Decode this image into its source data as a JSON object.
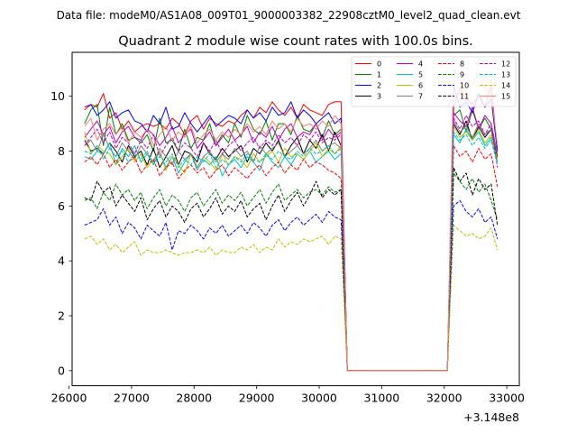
{
  "chart_data": {
    "type": "line",
    "suptitle": "Data file: modeM0/AS1A08_009T01_9000003382_22908cztM0_level2_quad_clean.evt",
    "title": "Quadrant 2 module wise count rates with 100.0s bins.",
    "xlabel": "",
    "ylabel": "",
    "x_offset_label": "+3.148e8",
    "xlim": [
      26050,
      33200
    ],
    "ylim": [
      -0.55,
      11.6
    ],
    "x_ticks": [
      26000,
      27000,
      28000,
      29000,
      30000,
      31000,
      32000,
      33000
    ],
    "x_tick_labels": [
      "26000",
      "27000",
      "28000",
      "29000",
      "30000",
      "31000",
      "32000",
      "33000"
    ],
    "y_ticks": [
      0,
      2,
      4,
      6,
      8,
      10
    ],
    "y_tick_labels": [
      "0",
      "2",
      "4",
      "6",
      "8",
      "10"
    ],
    "x": [
      26250,
      26350,
      26450,
      26550,
      26650,
      26750,
      26850,
      26950,
      27050,
      27150,
      27250,
      27350,
      27450,
      27550,
      27650,
      27750,
      27850,
      27950,
      28050,
      28150,
      28250,
      28350,
      28450,
      28550,
      28650,
      28750,
      28850,
      28950,
      29050,
      29150,
      29250,
      29350,
      29450,
      29550,
      29650,
      29750,
      29850,
      29950,
      30050,
      30150,
      30250,
      30350,
      30450,
      30550,
      30650,
      30750,
      30850,
      30950,
      31050,
      31150,
      31250,
      31350,
      31450,
      31550,
      31650,
      31750,
      31850,
      31950,
      32050,
      32150,
      32250,
      32350,
      32450,
      32550,
      32650,
      32750,
      32850
    ],
    "legend": {
      "position": "upper right",
      "columns": 4
    },
    "series": [
      {
        "name": "0",
        "color": "#ff0000",
        "dash": "solid",
        "values": [
          9.5,
          9.7,
          9.6,
          10.1,
          9.2,
          9.4,
          8.8,
          9.1,
          8.7,
          8.9,
          9.0,
          8.9,
          9.0,
          8.8,
          9.2,
          9.0,
          8.6,
          9.1,
          9.3,
          8.8,
          9.2,
          9.0,
          8.9,
          9.1,
          9.0,
          9.3,
          9.5,
          9.2,
          9.6,
          9.4,
          9.8,
          9.5,
          9.3,
          9.6,
          9.2,
          9.7,
          9.5,
          9.4,
          9.3,
          9.7,
          9.8,
          9.8,
          0.0,
          0,
          0,
          0,
          0,
          0,
          0,
          0,
          0,
          0,
          0,
          0,
          0,
          0,
          0,
          0,
          0.0,
          9.6,
          10.3,
          9.9,
          9.7,
          10.0,
          9.6,
          10.4,
          8.0
        ]
      },
      {
        "name": "1",
        "color": "#008000",
        "dash": "solid",
        "values": [
          9.0,
          9.5,
          9.7,
          8.2,
          9.6,
          8.6,
          9.0,
          8.4,
          8.5,
          8.3,
          8.6,
          8.0,
          9.2,
          8.3,
          8.4,
          8.0,
          8.8,
          8.1,
          8.5,
          8.4,
          9.0,
          8.2,
          8.6,
          8.3,
          9.0,
          8.5,
          9.3,
          8.8,
          8.6,
          9.1,
          8.4,
          9.0,
          9.0,
          8.6,
          9.3,
          8.8,
          8.7,
          9.0,
          8.5,
          9.1,
          8.6,
          8.8,
          0.0,
          0,
          0,
          0,
          0,
          0,
          0,
          0,
          0,
          0,
          0,
          0,
          0,
          0,
          0,
          0,
          0.0,
          9.3,
          9.5,
          8.7,
          9.5,
          8.8,
          9.2,
          8.8,
          7.7
        ]
      },
      {
        "name": "2",
        "color": "#0000ff",
        "dash": "solid",
        "values": [
          9.6,
          9.7,
          9.3,
          9.5,
          9.8,
          9.2,
          9.4,
          9.5,
          9.1,
          9.0,
          8.7,
          9.3,
          9.0,
          9.6,
          8.8,
          8.9,
          9.4,
          9.0,
          8.7,
          9.0,
          9.3,
          8.9,
          9.1,
          9.3,
          9.2,
          9.0,
          9.5,
          9.2,
          9.4,
          9.1,
          9.6,
          9.3,
          9.4,
          9.8,
          9.2,
          9.5,
          9.3,
          9.0,
          9.2,
          9.4,
          9.0,
          9.2,
          0.0,
          0,
          0,
          0,
          0,
          0,
          0,
          0,
          0,
          0,
          0,
          0,
          0,
          0,
          0,
          0,
          0.0,
          10.4,
          9.6,
          9.8,
          9.4,
          10.1,
          9.6,
          9.9,
          8.0
        ]
      },
      {
        "name": "3",
        "color": "#000000",
        "dash": "solid",
        "values": [
          8.4,
          8.0,
          8.1,
          7.9,
          8.3,
          8.0,
          7.6,
          8.2,
          7.8,
          8.0,
          7.5,
          8.1,
          7.4,
          7.8,
          8.2,
          7.5,
          8.0,
          7.9,
          7.6,
          8.3,
          7.9,
          7.7,
          8.1,
          7.8,
          8.0,
          8.2,
          7.6,
          8.1,
          7.9,
          8.3,
          8.0,
          8.4,
          7.8,
          8.2,
          8.5,
          7.9,
          8.4,
          8.1,
          8.6,
          8.0,
          8.7,
          8.2,
          0.0,
          0,
          0,
          0,
          0,
          0,
          0,
          0,
          0,
          0,
          0,
          0,
          0,
          0,
          0,
          0,
          0.0,
          9.0,
          8.6,
          9.1,
          8.4,
          8.9,
          8.5,
          8.8,
          7.8
        ]
      },
      {
        "name": "4",
        "color": "#bf00bf",
        "dash": "solid",
        "values": [
          8.5,
          8.8,
          9.1,
          8.6,
          8.9,
          8.3,
          8.7,
          8.9,
          8.5,
          8.4,
          8.8,
          8.6,
          8.2,
          8.5,
          8.9,
          8.3,
          8.6,
          8.8,
          8.1,
          8.4,
          8.7,
          8.2,
          8.5,
          8.8,
          8.4,
          8.6,
          8.9,
          8.3,
          8.7,
          8.5,
          8.9,
          8.4,
          8.8,
          9.0,
          8.5,
          8.7,
          8.6,
          9.0,
          8.4,
          8.8,
          8.5,
          8.7,
          0.0,
          0,
          0,
          0,
          0,
          0,
          0,
          0,
          0,
          0,
          0,
          0,
          0,
          0,
          0,
          0,
          0.0,
          9.4,
          9.1,
          8.9,
          9.6,
          8.8,
          9.3,
          9.0,
          7.9
        ]
      },
      {
        "name": "5",
        "color": "#00bfbf",
        "dash": "solid",
        "values": [
          7.8,
          7.7,
          8.0,
          7.9,
          8.3,
          7.5,
          8.1,
          7.8,
          8.2,
          7.6,
          7.9,
          7.5,
          8.0,
          7.4,
          7.8,
          7.2,
          7.6,
          7.9,
          7.3,
          7.7,
          7.5,
          7.8,
          7.1,
          7.5,
          7.7,
          7.4,
          7.8,
          7.6,
          7.3,
          7.9,
          7.6,
          7.4,
          7.8,
          7.5,
          7.9,
          7.7,
          8.0,
          7.6,
          7.8,
          8.0,
          7.7,
          7.9,
          0.0,
          0,
          0,
          0,
          0,
          0,
          0,
          0,
          0,
          0,
          0,
          0,
          0,
          0,
          0,
          0,
          0.0,
          8.6,
          8.3,
          8.8,
          8.4,
          8.7,
          8.2,
          8.5,
          7.6
        ]
      },
      {
        "name": "6",
        "color": "#bfbf00",
        "dash": "solid",
        "values": [
          8.7,
          7.9,
          8.2,
          8.0,
          7.9,
          7.5,
          7.8,
          8.1,
          7.6,
          7.9,
          7.4,
          7.7,
          8.0,
          7.3,
          7.8,
          7.5,
          7.2,
          7.9,
          7.4,
          7.8,
          7.6,
          7.3,
          7.9,
          7.5,
          7.8,
          7.7,
          7.4,
          7.9,
          7.6,
          7.8,
          8.0,
          7.6,
          8.1,
          7.8,
          7.9,
          7.7,
          8.0,
          8.3,
          7.8,
          8.1,
          7.9,
          8.2,
          0.0,
          0,
          0,
          0,
          0,
          0,
          0,
          0,
          0,
          0,
          0,
          0,
          0,
          0,
          0,
          0,
          0.0,
          8.9,
          8.5,
          8.7,
          8.4,
          8.8,
          8.3,
          8.6,
          7.7
        ]
      },
      {
        "name": "7",
        "color": "#808080",
        "dash": "solid",
        "values": [
          8.2,
          8.4,
          8.0,
          8.6,
          8.1,
          7.8,
          8.3,
          8.0,
          7.7,
          8.2,
          7.9,
          7.6,
          8.1,
          7.8,
          7.5,
          8.0,
          7.7,
          7.9,
          7.4,
          7.8,
          8.0,
          7.6,
          7.9,
          7.7,
          8.1,
          7.8,
          8.0,
          7.6,
          8.2,
          7.9,
          8.1,
          8.3,
          7.8,
          8.0,
          8.2,
          7.9,
          8.1,
          8.4,
          8.0,
          8.2,
          8.3,
          8.1,
          0.0,
          0,
          0,
          0,
          0,
          0,
          0,
          0,
          0,
          0,
          0,
          0,
          0,
          0,
          0,
          0,
          0.0,
          9.1,
          8.7,
          8.9,
          8.5,
          9.0,
          8.6,
          8.8,
          7.9
        ]
      },
      {
        "name": "8",
        "color": "#ff0000",
        "dash": "dashed",
        "values": [
          7.6,
          7.8,
          7.5,
          7.9,
          7.4,
          7.7,
          7.3,
          7.6,
          7.8,
          7.2,
          7.5,
          7.7,
          7.1,
          7.4,
          7.6,
          7.0,
          7.3,
          7.5,
          7.2,
          7.4,
          7.0,
          7.3,
          7.5,
          7.1,
          7.4,
          7.2,
          7.0,
          7.3,
          7.5,
          7.1,
          7.4,
          7.6,
          7.2,
          7.5,
          7.3,
          7.7,
          7.4,
          7.6,
          7.5,
          7.3,
          7.2,
          7.0,
          0.0,
          0,
          0,
          0,
          0,
          0,
          0,
          0,
          0,
          0,
          0,
          0,
          0,
          0,
          0,
          0,
          0.0,
          8.2,
          7.8,
          8.0,
          7.6,
          8.1,
          7.7,
          7.9,
          6.7
        ]
      },
      {
        "name": "9",
        "color": "#008000",
        "dash": "dashed",
        "values": [
          6.2,
          6.3,
          5.9,
          6.5,
          6.2,
          6.8,
          6.4,
          6.6,
          6.2,
          6.5,
          5.9,
          6.3,
          6.6,
          6.0,
          6.4,
          6.2,
          5.8,
          6.3,
          6.5,
          6.0,
          6.3,
          6.6,
          6.1,
          6.4,
          6.2,
          6.5,
          6.0,
          6.3,
          6.6,
          6.1,
          6.5,
          6.8,
          6.2,
          6.4,
          6.6,
          6.3,
          6.5,
          6.6,
          6.4,
          6.7,
          6.5,
          6.6,
          0.0,
          0,
          0,
          0,
          0,
          0,
          0,
          0,
          0,
          0,
          0,
          0,
          0,
          0,
          0,
          0,
          0.0,
          7.2,
          6.9,
          6.6,
          7.0,
          6.5,
          6.8,
          6.2,
          5.5
        ]
      },
      {
        "name": "10",
        "color": "#0000ff",
        "dash": "dashed",
        "values": [
          5.3,
          5.4,
          5.5,
          5.9,
          5.3,
          5.6,
          5.0,
          5.4,
          5.2,
          4.8,
          5.3,
          5.1,
          4.9,
          5.4,
          4.4,
          5.1,
          5.0,
          5.3,
          5.1,
          4.8,
          5.2,
          5.0,
          5.3,
          4.9,
          5.1,
          5.3,
          5.0,
          5.4,
          5.2,
          4.9,
          5.3,
          5.5,
          5.1,
          5.4,
          5.6,
          5.3,
          5.5,
          5.7,
          5.4,
          5.8,
          5.6,
          5.5,
          0.0,
          0,
          0,
          0,
          0,
          0,
          0,
          0,
          0,
          0,
          0,
          0,
          0,
          0,
          0,
          0,
          0.0,
          6.0,
          6.2,
          5.8,
          5.6,
          5.9,
          5.4,
          5.6,
          4.8
        ]
      },
      {
        "name": "11",
        "color": "#000000",
        "dash": "dashed",
        "values": [
          6.3,
          6.2,
          6.9,
          6.5,
          6.7,
          6.0,
          6.4,
          6.1,
          5.8,
          6.3,
          5.5,
          5.9,
          6.2,
          5.6,
          6.0,
          5.8,
          5.4,
          5.9,
          6.1,
          5.6,
          5.9,
          6.3,
          5.7,
          6.0,
          5.8,
          6.2,
          5.6,
          5.9,
          6.1,
          5.5,
          6.0,
          6.4,
          5.8,
          6.2,
          6.5,
          6.0,
          6.4,
          6.9,
          6.3,
          6.6,
          6.4,
          6.6,
          0.0,
          0,
          0,
          0,
          0,
          0,
          0,
          0,
          0,
          0,
          0,
          0,
          0,
          0,
          0,
          0,
          0.0,
          7.4,
          6.9,
          7.2,
          6.4,
          7.0,
          6.6,
          6.8,
          5.3
        ]
      },
      {
        "name": "12",
        "color": "#bf00bf",
        "dash": "dashed",
        "values": [
          8.2,
          8.5,
          8.8,
          8.3,
          8.7,
          8.1,
          8.5,
          8.3,
          7.9,
          8.4,
          8.1,
          8.6,
          7.8,
          8.2,
          8.5,
          8.0,
          8.3,
          8.1,
          7.8,
          8.3,
          8.0,
          8.4,
          7.9,
          8.2,
          8.4,
          8.0,
          8.3,
          8.5,
          8.1,
          8.4,
          8.2,
          8.6,
          8.3,
          8.5,
          8.2,
          8.6,
          8.4,
          8.7,
          8.3,
          8.5,
          8.4,
          8.6,
          0.0,
          0,
          0,
          0,
          0,
          0,
          0,
          0,
          0,
          0,
          0,
          0,
          0,
          0,
          0,
          0,
          0.0,
          9.2,
          8.8,
          9.3,
          8.9,
          9.1,
          8.6,
          9.0,
          7.4
        ]
      },
      {
        "name": "13",
        "color": "#00bfbf",
        "dash": "dashed",
        "values": [
          8.0,
          7.9,
          8.2,
          7.7,
          8.1,
          7.8,
          8.0,
          7.6,
          7.9,
          7.7,
          8.0,
          7.5,
          7.8,
          7.6,
          7.9,
          7.4,
          7.7,
          7.5,
          7.8,
          7.6,
          7.9,
          7.4,
          7.7,
          7.5,
          7.8,
          7.6,
          7.9,
          7.7,
          7.6,
          7.9,
          7.7,
          8.0,
          7.8,
          7.7,
          8.0,
          7.8,
          8.1,
          7.9,
          8.0,
          8.2,
          7.9,
          8.1,
          0.0,
          0,
          0,
          0,
          0,
          0,
          0,
          0,
          0,
          0,
          0,
          0,
          0,
          0,
          0,
          0,
          0.0,
          8.7,
          8.4,
          8.6,
          8.2,
          8.5,
          8.1,
          8.4,
          7.5
        ]
      },
      {
        "name": "14",
        "color": "#bfbf00",
        "dash": "dashed",
        "values": [
          4.8,
          4.9,
          4.6,
          4.8,
          4.4,
          4.6,
          4.3,
          4.5,
          4.7,
          4.2,
          4.4,
          4.3,
          4.3,
          4.4,
          4.3,
          4.2,
          4.3,
          4.3,
          4.4,
          4.3,
          4.5,
          4.2,
          4.4,
          4.3,
          4.3,
          4.5,
          4.4,
          4.6,
          4.3,
          4.5,
          4.4,
          4.8,
          4.5,
          4.7,
          4.6,
          4.8,
          4.7,
          4.8,
          4.9,
          4.6,
          4.9,
          4.8,
          0.0,
          0,
          0,
          0,
          0,
          0,
          0,
          0,
          0,
          0,
          0,
          0,
          0,
          0,
          0,
          0,
          0.0,
          5.3,
          5.1,
          4.9,
          5.0,
          4.8,
          4.9,
          5.2,
          4.4
        ]
      },
      {
        "name": "15",
        "color": "#fa8072",
        "dash": "solid",
        "values": [
          8.9,
          9.2,
          8.4,
          8.8,
          9.0,
          8.6,
          8.9,
          8.3,
          8.7,
          8.5,
          8.8,
          8.2,
          8.6,
          8.9,
          8.4,
          8.7,
          8.5,
          8.9,
          8.3,
          8.6,
          8.8,
          8.4,
          8.7,
          8.5,
          8.8,
          8.6,
          9.0,
          8.7,
          8.9,
          8.6,
          9.1,
          8.8,
          9.0,
          8.7,
          9.2,
          8.9,
          9.0,
          8.8,
          9.1,
          8.9,
          9.3,
          9.0,
          0.0,
          0,
          0,
          0,
          0,
          0,
          0,
          0,
          0,
          0,
          0,
          0,
          0,
          0,
          0,
          0,
          0.0,
          11.0,
          10.6,
          10.5,
          10.4,
          10.9,
          10.3,
          10.1,
          8.2
        ]
      }
    ]
  }
}
